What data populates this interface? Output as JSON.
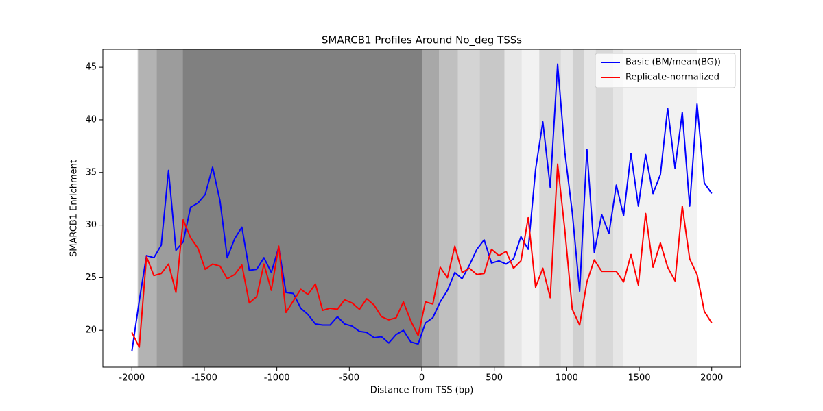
{
  "chart_data": {
    "type": "line",
    "title": "SMARCB1 Profiles Around No_deg TSSs",
    "x_label": "Distance from TSS (bp)",
    "y_label": "SMARCB1 Enrichment",
    "xlim": [
      -2200,
      2200
    ],
    "ylim": [
      16.5,
      46.7
    ],
    "xticks": [
      -2000,
      -1500,
      -1000,
      -500,
      0,
      500,
      1000,
      1500,
      2000
    ],
    "yticks": [
      20,
      25,
      30,
      35,
      40,
      45
    ],
    "legend": "upper right",
    "bands": [
      {
        "x": [
          -1960,
          -1950
        ],
        "color": "#c4c4c4"
      },
      {
        "x": [
          -1950,
          -1830
        ],
        "color": "#b3b3b3"
      },
      {
        "x": [
          -1830,
          -1650
        ],
        "color": "#9c9c9c"
      },
      {
        "x": [
          -1650,
          0
        ],
        "color": "#808080"
      },
      {
        "x": [
          0,
          120
        ],
        "color": "#a8a8a8"
      },
      {
        "x": [
          120,
          250
        ],
        "color": "#c0c0c0"
      },
      {
        "x": [
          250,
          400
        ],
        "color": "#d4d4d4"
      },
      {
        "x": [
          400,
          570
        ],
        "color": "#c8c8c8"
      },
      {
        "x": [
          570,
          690
        ],
        "color": "#e6e6e6"
      },
      {
        "x": [
          690,
          810
        ],
        "color": "#f2f2f2"
      },
      {
        "x": [
          810,
          960
        ],
        "color": "#d8d8d8"
      },
      {
        "x": [
          960,
          1040
        ],
        "color": "#e6e6e6"
      },
      {
        "x": [
          1040,
          1120
        ],
        "color": "#d0d0d0"
      },
      {
        "x": [
          1120,
          1200
        ],
        "color": "#e6e6e6"
      },
      {
        "x": [
          1200,
          1320
        ],
        "color": "#d8d8d8"
      },
      {
        "x": [
          1320,
          1390
        ],
        "color": "#e6e6e6"
      },
      {
        "x": [
          1390,
          1900
        ],
        "color": "#f2f2f2"
      }
    ],
    "x": [
      -2000,
      -1949,
      -1899,
      -1848,
      -1797,
      -1747,
      -1696,
      -1646,
      -1595,
      -1544,
      -1494,
      -1443,
      -1392,
      -1342,
      -1291,
      -1241,
      -1190,
      -1139,
      -1089,
      -1038,
      -987,
      -937,
      -886,
      -835,
      -785,
      -734,
      -684,
      -633,
      -582,
      -532,
      -481,
      -430,
      -380,
      -329,
      -278,
      -228,
      -177,
      -127,
      -76,
      -25,
      25,
      76,
      127,
      177,
      228,
      278,
      329,
      380,
      430,
      481,
      532,
      582,
      633,
      684,
      734,
      785,
      835,
      886,
      937,
      987,
      1038,
      1089,
      1139,
      1190,
      1241,
      1291,
      1342,
      1392,
      1443,
      1494,
      1544,
      1595,
      1646,
      1696,
      1747,
      1797,
      1848,
      1899,
      1949,
      2000
    ],
    "series": [
      {
        "name": "Basic (BM/mean(BG))",
        "color": "#0000ff",
        "values": [
          18.0,
          22.8,
          27.1,
          26.9,
          28.1,
          35.2,
          27.6,
          28.4,
          31.7,
          32.1,
          32.9,
          35.5,
          32.3,
          26.9,
          28.7,
          29.8,
          25.7,
          25.8,
          26.9,
          25.5,
          27.9,
          23.6,
          23.5,
          22.1,
          21.5,
          20.6,
          20.5,
          20.5,
          21.3,
          20.6,
          20.4,
          19.9,
          19.8,
          19.3,
          19.4,
          18.8,
          19.6,
          20.0,
          18.9,
          18.7,
          20.7,
          21.2,
          22.7,
          23.8,
          25.5,
          24.9,
          26.2,
          27.7,
          28.6,
          26.4,
          26.6,
          26.3,
          26.8,
          28.9,
          27.7,
          35.3,
          39.8,
          33.6,
          45.3,
          36.9,
          31.2,
          23.7,
          37.2,
          27.4,
          31.0,
          29.2,
          33.8,
          30.9,
          36.8,
          31.8,
          36.7,
          33.0,
          34.8,
          41.1,
          35.4,
          40.7,
          31.8,
          41.5,
          34.0,
          33.0
        ]
      },
      {
        "name": "Replicate-normalized",
        "color": "#ff0000",
        "values": [
          19.8,
          18.4,
          27.0,
          25.2,
          25.4,
          26.3,
          23.6,
          30.5,
          28.8,
          27.8,
          25.8,
          26.3,
          26.1,
          24.9,
          25.3,
          26.2,
          22.6,
          23.2,
          26.3,
          23.8,
          28.0,
          21.7,
          22.8,
          23.9,
          23.4,
          24.4,
          21.9,
          22.1,
          22.0,
          22.9,
          22.6,
          22.0,
          23.0,
          22.4,
          21.3,
          21.0,
          21.2,
          22.7,
          20.9,
          19.5,
          22.7,
          22.5,
          26.0,
          25.0,
          28.0,
          25.5,
          25.9,
          25.3,
          25.4,
          27.7,
          27.1,
          27.5,
          25.9,
          26.6,
          30.7,
          24.1,
          25.9,
          23.1,
          35.8,
          29.5,
          22.0,
          20.5,
          24.6,
          26.7,
          25.6,
          25.6,
          25.6,
          24.6,
          27.2,
          24.3,
          31.1,
          26.0,
          28.3,
          26.0,
          24.7,
          31.8,
          26.8,
          25.3,
          21.8,
          20.7
        ]
      }
    ]
  }
}
